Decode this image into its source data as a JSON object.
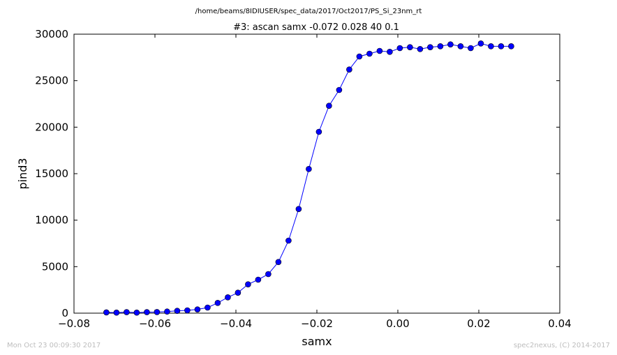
{
  "chart_data": {
    "type": "line",
    "suptitle": "/home/beams/8IDIUSER/spec_data/2017/Oct2017/PS_Si_23nm_rt",
    "title": "#3: ascan  samx -0.072 0.028  40 0.1",
    "xlabel": "samx",
    "ylabel": "pind3",
    "xlim": [
      -0.08,
      0.04
    ],
    "ylim": [
      0,
      30000
    ],
    "xticks": [
      -0.08,
      -0.06,
      -0.04,
      -0.02,
      0.0,
      0.02,
      0.04
    ],
    "xtick_labels": [
      "−0.08",
      "−0.06",
      "−0.04",
      "−0.02",
      "0.00",
      "0.02",
      "0.04"
    ],
    "yticks": [
      0,
      5000,
      10000,
      15000,
      20000,
      25000,
      30000
    ],
    "ytick_labels": [
      "0",
      "5000",
      "10000",
      "15000",
      "20000",
      "25000",
      "30000"
    ],
    "grid": false,
    "legend": false,
    "line_color": "#0000ff",
    "marker": "circle",
    "series": [
      {
        "x": [
          -0.072,
          -0.0695,
          -0.067,
          -0.0645,
          -0.062,
          -0.0595,
          -0.057,
          -0.0545,
          -0.052,
          -0.0495,
          -0.047,
          -0.0445,
          -0.042,
          -0.0395,
          -0.037,
          -0.0345,
          -0.032,
          -0.0295,
          -0.027,
          -0.0245,
          -0.022,
          -0.0195,
          -0.017,
          -0.0145,
          -0.012,
          -0.0095,
          -0.007,
          -0.0045,
          -0.002,
          0.0005,
          0.003,
          0.0055,
          0.008,
          0.0105,
          0.013,
          0.0155,
          0.018,
          0.0205,
          0.023,
          0.0255,
          0.028
        ],
        "y": [
          80,
          60,
          110,
          60,
          110,
          120,
          170,
          250,
          300,
          400,
          600,
          1100,
          1700,
          2200,
          3100,
          3600,
          4200,
          5500,
          7800,
          11200,
          15500,
          19500,
          22300,
          24000,
          26200,
          27600,
          27900,
          28200,
          28100,
          28500,
          28600,
          28400,
          28600,
          28700,
          28900,
          28700,
          28500,
          29000,
          28700,
          28700,
          28700
        ]
      }
    ]
  },
  "footer": {
    "left": "Mon Oct 23 00:09:30 2017",
    "right": "spec2nexus, (C) 2014-2017"
  }
}
